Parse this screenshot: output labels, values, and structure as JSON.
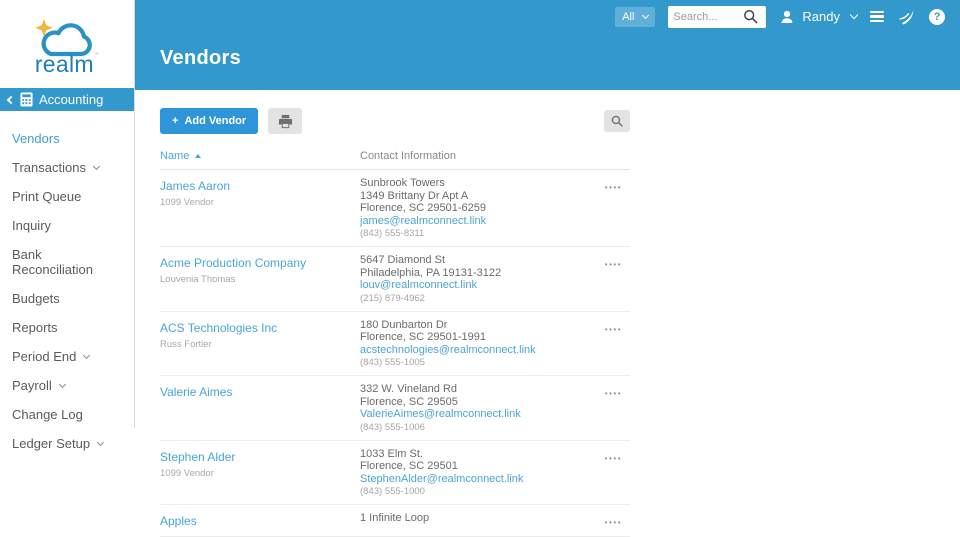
{
  "brand": {
    "logo_text": "realm",
    "trademark": "™",
    "cloud_color": "#2a90c8",
    "star_color": "#f0b73c"
  },
  "topbar": {
    "scope_label": "All",
    "search_placeholder": "Search...",
    "user_name": "Randy",
    "help_glyph": "?"
  },
  "sidebar": {
    "section": {
      "label": "Accounting"
    },
    "items": [
      {
        "label": "Vendors",
        "active": true,
        "expandable": false
      },
      {
        "label": "Transactions",
        "active": false,
        "expandable": true
      },
      {
        "label": "Print Queue",
        "active": false,
        "expandable": false
      },
      {
        "label": "Inquiry",
        "active": false,
        "expandable": false
      },
      {
        "label": "Bank Reconciliation",
        "active": false,
        "expandable": false
      },
      {
        "label": "Budgets",
        "active": false,
        "expandable": false
      },
      {
        "label": "Reports",
        "active": false,
        "expandable": false
      },
      {
        "label": "Period End",
        "active": false,
        "expandable": true
      },
      {
        "label": "Payroll",
        "active": false,
        "expandable": true
      },
      {
        "label": "Change Log",
        "active": false,
        "expandable": false
      },
      {
        "label": "Ledger Setup",
        "active": false,
        "expandable": true
      }
    ]
  },
  "page": {
    "title": "Vendors"
  },
  "toolbar": {
    "add_vendor_plus": "+",
    "add_vendor_label": "Add Vendor"
  },
  "table": {
    "columns": [
      {
        "label": "Name",
        "sorted": "asc"
      },
      {
        "label": "Contact Information",
        "sorted": null
      }
    ],
    "actions_glyph": "••••",
    "rows": [
      {
        "name": "James Aaron",
        "sublabel": "1099 Vendor",
        "address": [
          "Sunbrook Towers",
          "1349 Brittany Dr Apt A",
          "Florence, SC 29501-6259"
        ],
        "email": "james@realmconnect.link",
        "phone": "(843) 555-8311"
      },
      {
        "name": "Acme Production Company",
        "sublabel": "Louvenia Thomas",
        "address": [
          "5647 Diamond St",
          "Philadelphia, PA 19131-3122"
        ],
        "email": "louv@realmconnect.link",
        "phone": "(215) 879-4962"
      },
      {
        "name": "ACS Technologies Inc",
        "sublabel": "Russ Fortier",
        "address": [
          "180 Dunbarton Dr",
          "Florence, SC 29501-1991"
        ],
        "email": "acstechnologies@realmconnect.link",
        "phone": "(843) 555-1005"
      },
      {
        "name": "Valerie Aimes",
        "sublabel": "",
        "address": [
          "332 W. Vineland Rd",
          "Florence, SC 29505"
        ],
        "email": "ValerieAimes@realmconnect.link",
        "phone": "(843) 555-1006"
      },
      {
        "name": "Stephen Alder",
        "sublabel": "1099 Vendor",
        "address": [
          "1033 Elm St.",
          "Florence, SC 29501"
        ],
        "email": "StephenAlder@realmconnect.link",
        "phone": "(843) 555-1000"
      },
      {
        "name": "Apples",
        "sublabel": "",
        "address": [
          "1 Infinite Loop"
        ],
        "email": "",
        "phone": ""
      }
    ]
  }
}
